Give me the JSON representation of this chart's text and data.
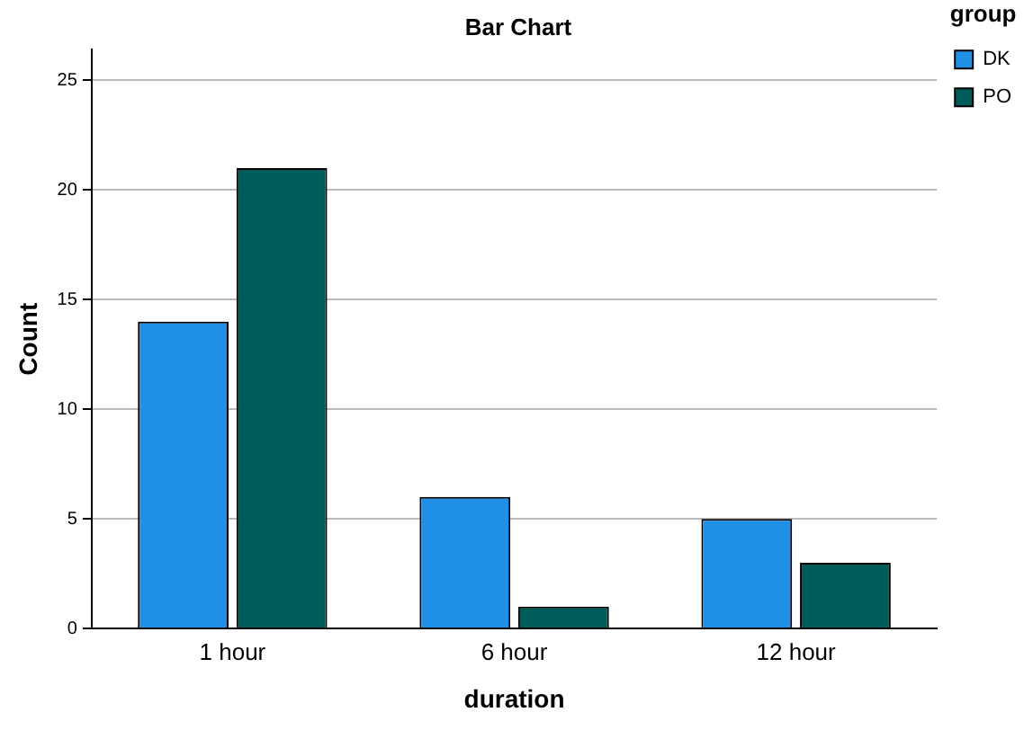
{
  "chart_data": {
    "type": "bar",
    "title": "Bar Chart",
    "xlabel": "duration",
    "ylabel": "Count",
    "legend_title": "group",
    "categories": [
      "1 hour",
      "6 hour",
      "12 hour"
    ],
    "series": [
      {
        "name": "DK",
        "color": "#1f90e6",
        "values": [
          14,
          6,
          5
        ]
      },
      {
        "name": "PO",
        "color": "#005c58",
        "values": [
          21,
          1,
          3
        ]
      }
    ],
    "ylim": [
      0,
      26.4
    ],
    "yticks": [
      0,
      5,
      10,
      15,
      20,
      25
    ],
    "grid": "y",
    "legend": "top right"
  }
}
